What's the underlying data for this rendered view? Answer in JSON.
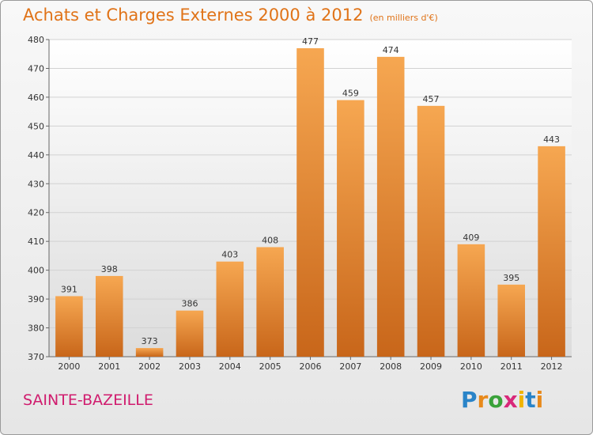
{
  "header": {
    "title": "Achats et Charges Externes 2000 à 2012",
    "unit": "(en milliers d'€)"
  },
  "footer": {
    "city": "SAINTE-BAZEILLE",
    "logo_text": "Proxiti",
    "logo_colors": [
      "#2a84c8",
      "#e8891a",
      "#3aa23a",
      "#d8287a",
      "#f0b400",
      "#2a84c8",
      "#e8891a"
    ]
  },
  "colors": {
    "bar_light": "#f6a751",
    "bar_dark": "#c8661a",
    "title": "#e07318",
    "city": "#d01c6e"
  },
  "chart_data": {
    "type": "bar",
    "title": "Achats et Charges Externes 2000 à 2012",
    "subtitle": "(en milliers d'€)",
    "xlabel": "",
    "ylabel": "",
    "categories": [
      "2000",
      "2001",
      "2002",
      "2003",
      "2004",
      "2005",
      "2006",
      "2007",
      "2008",
      "2009",
      "2010",
      "2011",
      "2012"
    ],
    "values": [
      391,
      398,
      373,
      386,
      403,
      408,
      477,
      459,
      474,
      457,
      409,
      395,
      443
    ],
    "ylim": [
      370,
      480
    ],
    "yticks": [
      370,
      380,
      390,
      400,
      410,
      420,
      430,
      440,
      450,
      460,
      470,
      480
    ],
    "grid": true,
    "data_labels": true
  }
}
